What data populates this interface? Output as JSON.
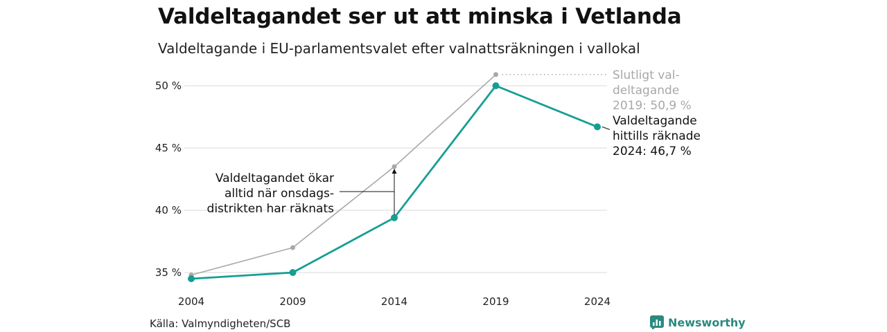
{
  "title": "Valdeltagandet ser ut att minska i Vetlanda",
  "subtitle": "Valdeltagande i EU-parlamentsvalet efter valnattsräkningen i vallokal",
  "source": "Källa: Valmyndigheten/SCB",
  "brand": "Newsworthy",
  "colors": {
    "preliminary": "#159e94",
    "final": "#a8a8a8",
    "grid": "#d9d9d9",
    "brand": "#2a8a80"
  },
  "chart_data": {
    "type": "line",
    "x": [
      2004,
      2009,
      2014,
      2019,
      2024
    ],
    "tick_labels": [
      "2004",
      "2009",
      "2014",
      "2019",
      "2024"
    ],
    "y_ticks": [
      35,
      40,
      45,
      50
    ],
    "y_tick_labels": [
      "35 %",
      "40 %",
      "45 %",
      "50 %"
    ],
    "ylim": [
      34.5,
      51
    ],
    "grid": true,
    "series": [
      {
        "key": "final",
        "values": [
          34.8,
          37.0,
          43.5,
          50.9,
          null
        ]
      },
      {
        "key": "preliminary",
        "values": [
          34.5,
          35.0,
          39.4,
          50.0,
          46.7
        ]
      }
    ],
    "annotations": {
      "final_label": [
        "Slutligt val-",
        "deltagande",
        "2019: 50,9 %"
      ],
      "preliminary_label": [
        "Valdeltagande",
        "hittills räknade",
        "2024: 46,7 %"
      ],
      "note": [
        "Valdeltagandet ökar",
        "alltid när onsdags-",
        "distrikten har räknats"
      ]
    }
  }
}
